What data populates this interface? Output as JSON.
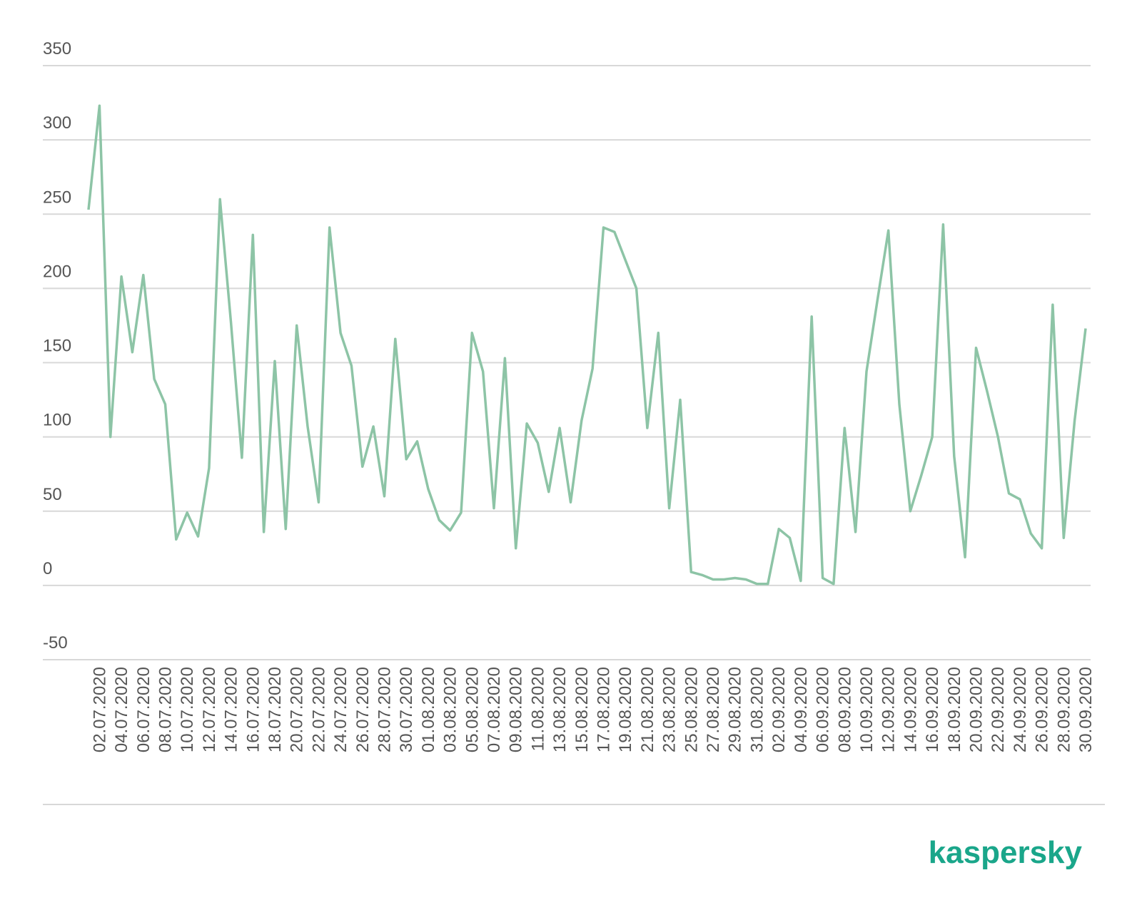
{
  "chart_data": {
    "type": "line",
    "categories": [
      null,
      "02.07.2020",
      null,
      "04.07.2020",
      null,
      "06.07.2020",
      null,
      "08.07.2020",
      null,
      "10.07.2020",
      null,
      "12.07.2020",
      null,
      "14.07.2020",
      null,
      "16.07.2020",
      null,
      "18.07.2020",
      null,
      "20.07.2020",
      null,
      "22.07.2020",
      null,
      "24.07.2020",
      null,
      "26.07.2020",
      null,
      "28.07.2020",
      null,
      "30.07.2020",
      null,
      "01.08.2020",
      null,
      "03.08.2020",
      null,
      "05.08.2020",
      null,
      "07.08.2020",
      null,
      "09.08.2020",
      null,
      "11.08.2020",
      null,
      "13.08.2020",
      null,
      "15.08.2020",
      null,
      "17.08.2020",
      null,
      "19.08.2020",
      null,
      "21.08.2020",
      null,
      "23.08.2020",
      null,
      "25.08.2020",
      null,
      "27.08.2020",
      null,
      "29.08.2020",
      null,
      "31.08.2020",
      null,
      "02.09.2020",
      null,
      "04.09.2020",
      null,
      "06.09.2020",
      null,
      "08.09.2020",
      null,
      "10.09.2020",
      null,
      "12.09.2020",
      null,
      "14.09.2020",
      null,
      "16.09.2020",
      null,
      "18.09.2020",
      null,
      "20.09.2020",
      null,
      "22.09.2020",
      null,
      "24.09.2020",
      null,
      "26.09.2020",
      null,
      "28.09.2020",
      null,
      "30.09.2020"
    ],
    "values": [
      253,
      323,
      100,
      208,
      157,
      209,
      139,
      122,
      31,
      49,
      33,
      79,
      260,
      177,
      86,
      236,
      36,
      151,
      38,
      175,
      107,
      56,
      241,
      170,
      148,
      80,
      107,
      60,
      166,
      85,
      97,
      65,
      44,
      37,
      49,
      170,
      144,
      52,
      153,
      25,
      109,
      96,
      63,
      106,
      56,
      111,
      146,
      241,
      238,
      219,
      200,
      106,
      170,
      52,
      125,
      9,
      7,
      4,
      4,
      5,
      4,
      1,
      1,
      38,
      32,
      3,
      181,
      5,
      1,
      106,
      36,
      144,
      192,
      239,
      122,
      50,
      74,
      100,
      243,
      87,
      19,
      160,
      131,
      100,
      62,
      58,
      35,
      25,
      189,
      32,
      111,
      173
    ],
    "color": "#8dc4a6",
    "ylim": [
      -50,
      350
    ],
    "yticks": [
      -50,
      0,
      50,
      100,
      150,
      200,
      250,
      300,
      350
    ],
    "grid": true
  },
  "logo": "kaspersky"
}
